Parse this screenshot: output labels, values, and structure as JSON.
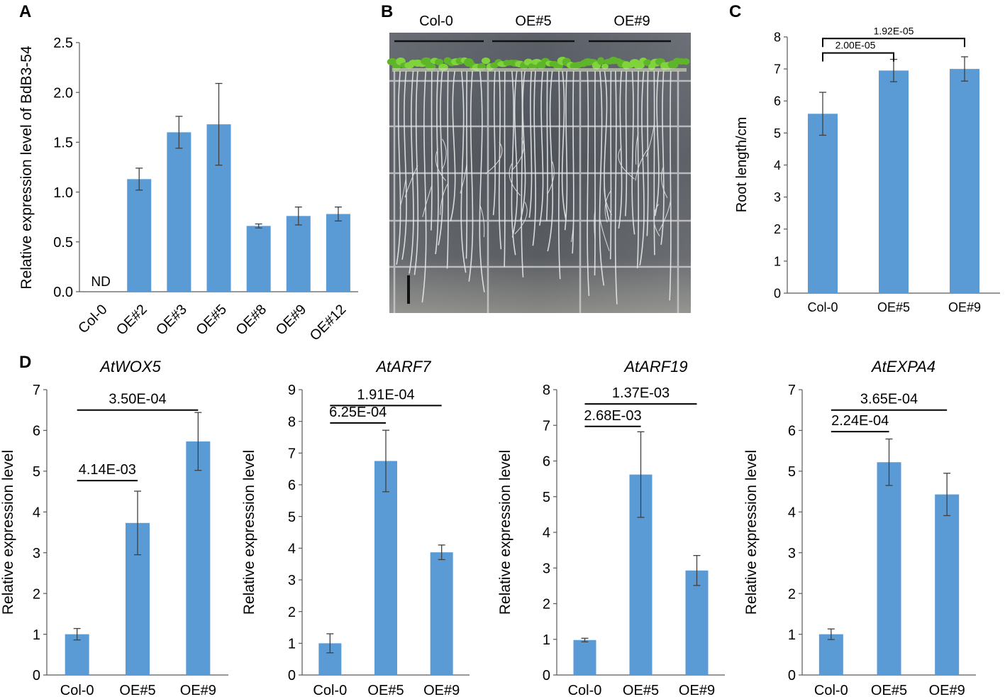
{
  "colors": {
    "bar": "#5b9bd5",
    "axis": "#595959",
    "err": "#404040"
  },
  "panels": {
    "A": {
      "letter": "A"
    },
    "B": {
      "letter": "B",
      "labels": [
        "Col-0",
        "OE#5",
        "OE#9"
      ]
    },
    "C": {
      "letter": "C"
    },
    "D": {
      "letter": "D"
    }
  },
  "chart_data": [
    {
      "id": "A",
      "type": "bar",
      "title": "",
      "xlabel": "",
      "ylabel": "Relative expression level of BdB3-54",
      "categories": [
        "Col-0",
        "OE#2",
        "OE#3",
        "OE#5",
        "OE#8",
        "OE#9",
        "OE#12"
      ],
      "values": [
        0,
        1.13,
        1.6,
        1.68,
        0.66,
        0.76,
        0.78
      ],
      "errors": [
        0,
        0.11,
        0.16,
        0.41,
        0.02,
        0.09,
        0.07
      ],
      "ylim": [
        0,
        2.5
      ],
      "yticks": [
        "0.0",
        "0.5",
        "1.0",
        "1.5",
        "2.0",
        "2.5"
      ],
      "annotations": [
        "ND"
      ],
      "xtick_rotation": -45
    },
    {
      "id": "C",
      "type": "bar",
      "title": "",
      "xlabel": "",
      "ylabel": "Root length/cm",
      "categories": [
        "Col-0",
        "OE#5",
        "OE#9"
      ],
      "values": [
        5.6,
        6.95,
        7.0
      ],
      "errors": [
        0.67,
        0.35,
        0.38
      ],
      "ylim": [
        0,
        8
      ],
      "yticks": [
        "0",
        "1",
        "2",
        "3",
        "4",
        "5",
        "6",
        "7",
        "8"
      ],
      "brackets": [
        {
          "from": 0,
          "to": 1,
          "label": "2.00E-05",
          "y": 7.5
        },
        {
          "from": 0,
          "to": 2,
          "label": "1.92E-05",
          "y": 7.95
        }
      ]
    },
    {
      "id": "D1",
      "type": "bar",
      "title": "AtWOX5",
      "xlabel": "",
      "ylabel": "Relative expression level",
      "categories": [
        "Col-0",
        "OE#5",
        "OE#9"
      ],
      "values": [
        1.0,
        3.73,
        5.73
      ],
      "errors": [
        0.14,
        0.78,
        0.71
      ],
      "ylim": [
        0,
        7
      ],
      "yticks": [
        "0",
        "1",
        "2",
        "3",
        "4",
        "5",
        "6",
        "7"
      ],
      "brackets": [
        {
          "from": 0,
          "to": 1,
          "label": "4.14E-03",
          "y": 4.77
        },
        {
          "from": 0,
          "to": 2,
          "label": "3.50E-04",
          "y": 6.5
        }
      ]
    },
    {
      "id": "D2",
      "type": "bar",
      "title": "AtARF7",
      "xlabel": "",
      "ylabel": "Relative expression level",
      "categories": [
        "Col-0",
        "OE#5",
        "OE#9"
      ],
      "values": [
        1.0,
        6.75,
        3.87
      ],
      "errors": [
        0.3,
        0.97,
        0.23
      ],
      "ylim": [
        0,
        9
      ],
      "yticks": [
        "0",
        "1",
        "2",
        "3",
        "4",
        "5",
        "6",
        "7",
        "8",
        "9"
      ],
      "brackets": [
        {
          "from": 0,
          "to": 1,
          "label": "6.25E-04",
          "y": 7.95
        },
        {
          "from": 0,
          "to": 2,
          "label": "1.91E-04",
          "y": 8.5
        }
      ]
    },
    {
      "id": "D3",
      "type": "bar",
      "title": "AtARF19",
      "xlabel": "",
      "ylabel": "Relative expression level",
      "categories": [
        "Col-0",
        "OE#5",
        "OE#9"
      ],
      "values": [
        0.98,
        5.62,
        2.93
      ],
      "errors": [
        0.05,
        1.2,
        0.42
      ],
      "ylim": [
        0,
        8
      ],
      "yticks": [
        "0",
        "1",
        "2",
        "3",
        "4",
        "5",
        "6",
        "7",
        "8"
      ],
      "brackets": [
        {
          "from": 0,
          "to": 1,
          "label": "2.68E-03",
          "y": 6.97
        },
        {
          "from": 0,
          "to": 2,
          "label": "1.37E-03",
          "y": 7.6
        }
      ]
    },
    {
      "id": "D4",
      "type": "bar",
      "title": "AtEXPA4",
      "xlabel": "",
      "ylabel": "Relative expression level",
      "categories": [
        "Col-0",
        "OE#5",
        "OE#9"
      ],
      "values": [
        1.0,
        5.22,
        4.43
      ],
      "errors": [
        0.13,
        0.57,
        0.52
      ],
      "ylim": [
        0,
        7
      ],
      "yticks": [
        "0",
        "1",
        "2",
        "3",
        "4",
        "5",
        "6",
        "7"
      ],
      "brackets": [
        {
          "from": 0,
          "to": 1,
          "label": "2.24E-04",
          "y": 5.97
        },
        {
          "from": 0,
          "to": 2,
          "label": "3.65E-04",
          "y": 6.5
        }
      ]
    }
  ]
}
